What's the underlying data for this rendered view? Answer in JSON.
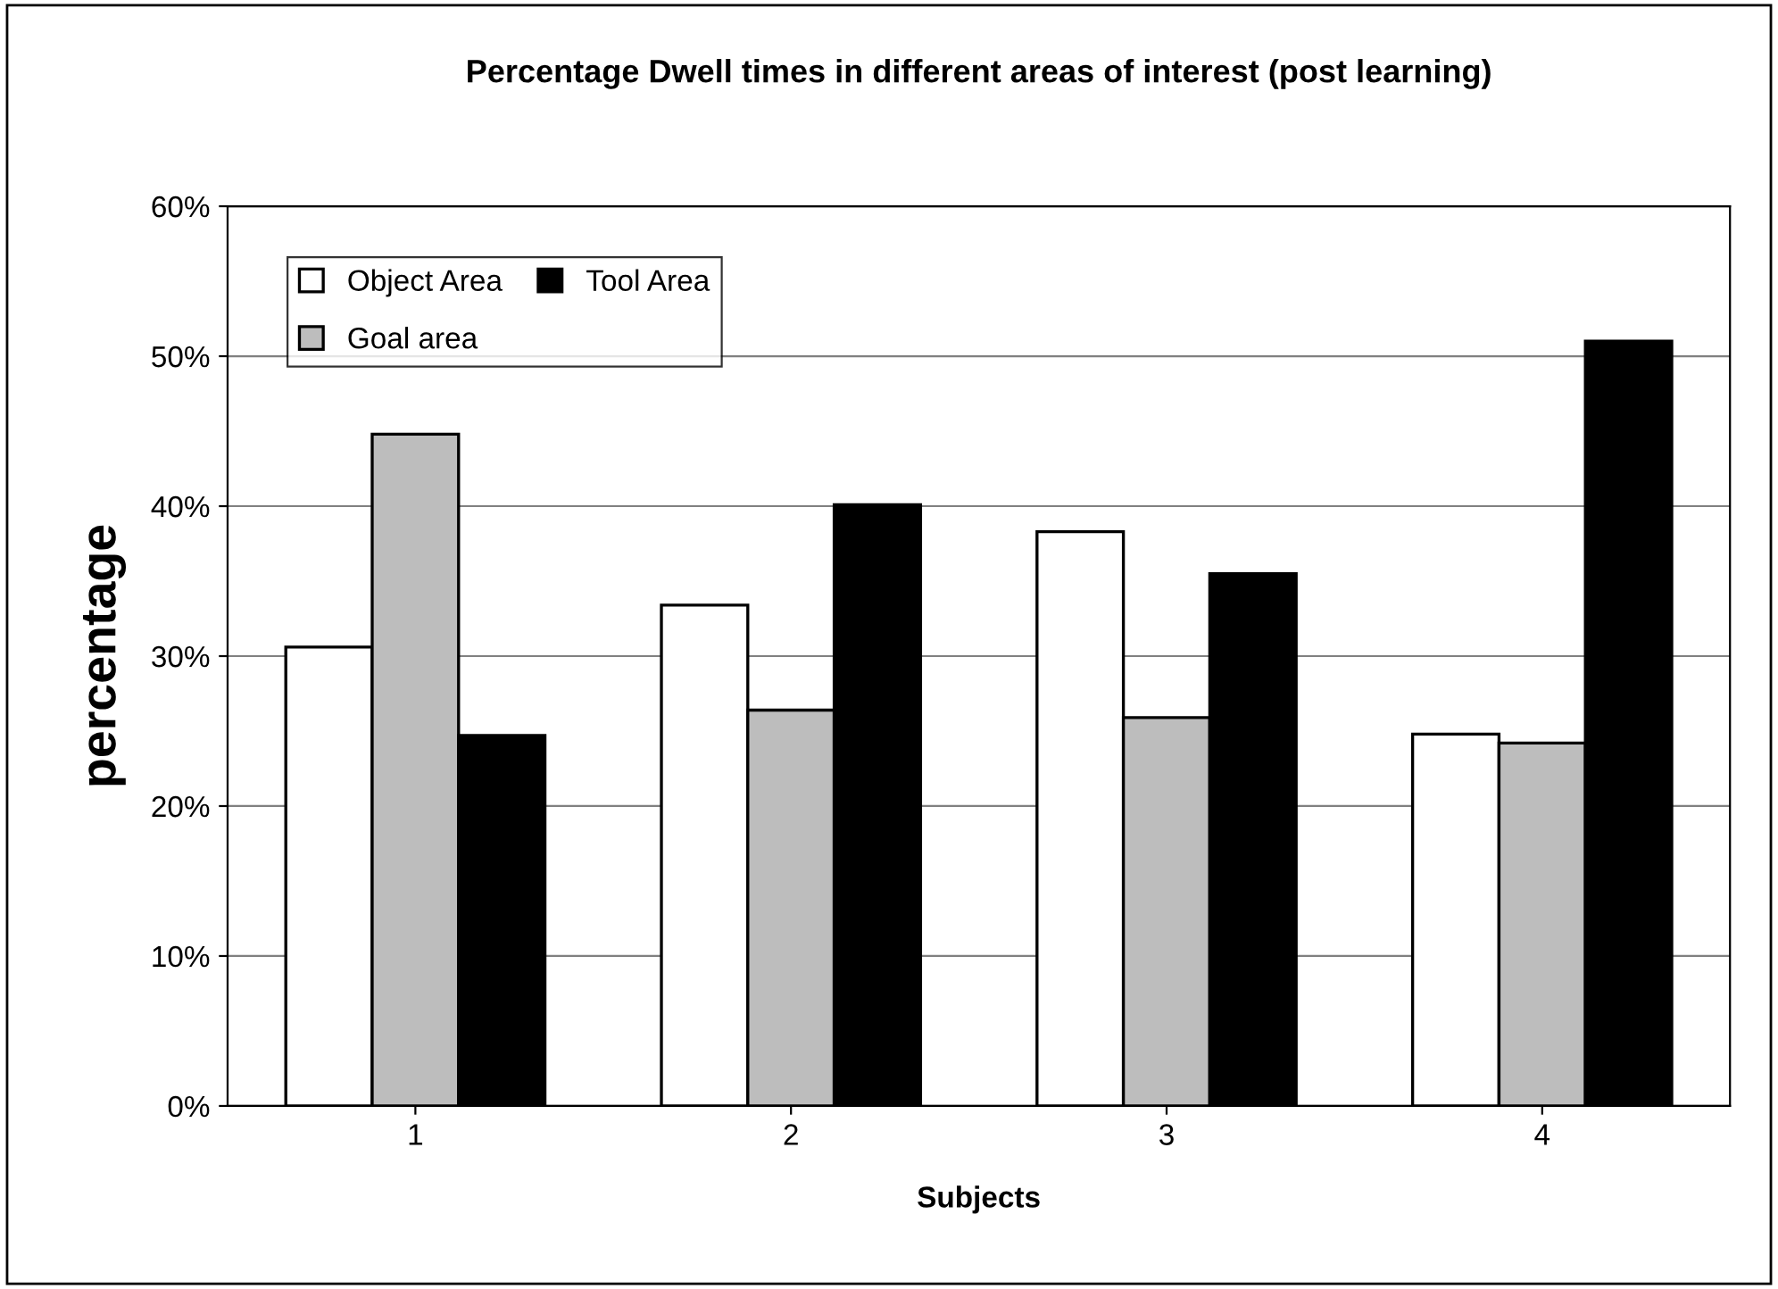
{
  "chart_data": {
    "type": "bar",
    "title": "Percentage Dwell times in different areas of interest (post learning)",
    "xlabel": "Subjects",
    "ylabel": "percentage",
    "categories": [
      "1",
      "2",
      "3",
      "4"
    ],
    "series": [
      {
        "name": "Object Area",
        "color": "#ffffff",
        "values": [
          30.6,
          33.4,
          38.3,
          24.8
        ]
      },
      {
        "name": "Goal area",
        "color": "#bdbdbd",
        "values": [
          44.8,
          26.4,
          25.9,
          24.2
        ]
      },
      {
        "name": "Tool Area",
        "color": "#000000",
        "values": [
          24.7,
          40.1,
          35.5,
          51.0
        ]
      }
    ],
    "ylim": [
      0,
      60
    ],
    "yticks": [
      {
        "value": 0,
        "label": "0%"
      },
      {
        "value": 10,
        "label": "10%"
      },
      {
        "value": 20,
        "label": "20%"
      },
      {
        "value": 30,
        "label": "30%"
      },
      {
        "value": 40,
        "label": "40%"
      },
      {
        "value": 50,
        "label": "50%"
      },
      {
        "value": 60,
        "label": "60%"
      }
    ],
    "grid": "y",
    "legend": "top left"
  }
}
